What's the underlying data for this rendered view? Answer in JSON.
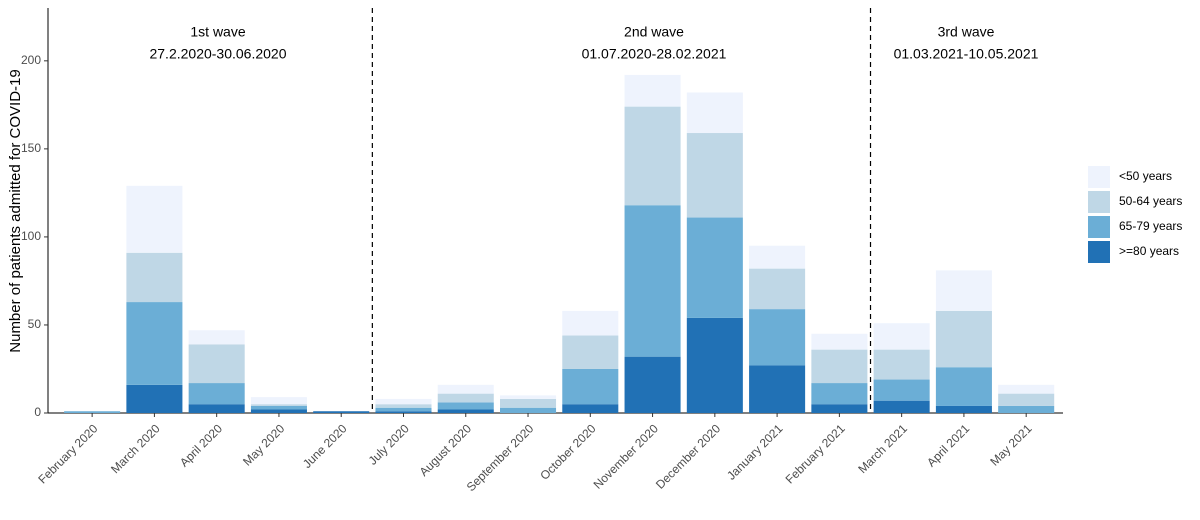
{
  "chart_data": {
    "type": "stacked_bar",
    "y_label": "Number of patients admitted for COVID-19",
    "categories": [
      "February 2020",
      "March 2020",
      "April 2020",
      "May 2020",
      "June 2020",
      "July 2020",
      "August 2020",
      "September 2020",
      "October 2020",
      "November 2020",
      "December 2020",
      "January 2021",
      "February 2021",
      "March 2021",
      "April 2021",
      "May 2021"
    ],
    "series": [
      {
        "name": "<50 years",
        "color": "#eef3fd",
        "values": [
          0,
          38,
          8,
          4,
          0,
          3,
          5,
          2,
          14,
          18,
          23,
          13,
          9,
          15,
          23,
          5
        ]
      },
      {
        "name": "50-64 years",
        "color": "#bfd7e6",
        "values": [
          0,
          28,
          22,
          1,
          0,
          2,
          5,
          5,
          19,
          56,
          48,
          23,
          19,
          17,
          32,
          7
        ]
      },
      {
        "name": "65-79 years",
        "color": "#6baed6",
        "values": [
          1,
          47,
          12,
          2,
          0,
          2,
          4,
          3,
          20,
          86,
          57,
          32,
          12,
          12,
          22,
          4
        ]
      },
      {
        "name": ">=80 years",
        "color": "#2171b5",
        "values": [
          0,
          16,
          5,
          2,
          1,
          1,
          2,
          0,
          5,
          32,
          54,
          27,
          5,
          7,
          4,
          0
        ]
      }
    ],
    "waves": [
      {
        "label": "1st wave",
        "period": "27.2.2020-30.06.2020"
      },
      {
        "label": "2nd wave",
        "period": "01.07.2020-28.02.2021"
      },
      {
        "label": "3rd wave",
        "period": "01.03.2021-10.05.2021"
      }
    ],
    "ylim": [
      0,
      230
    ],
    "yticks": [
      0,
      50,
      100,
      150,
      200
    ],
    "grid": false,
    "legend": "right"
  }
}
